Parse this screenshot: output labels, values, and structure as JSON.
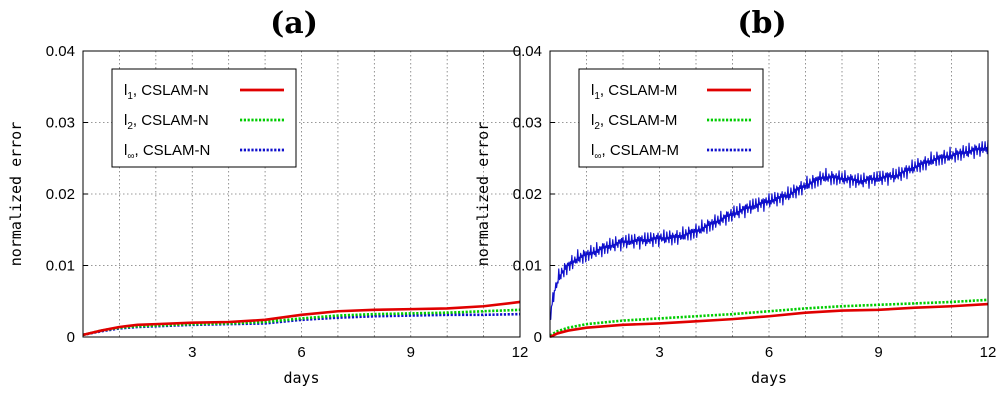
{
  "chart_data": [
    {
      "type": "line",
      "title": "(a)",
      "xlabel": "days",
      "ylabel": "normalized error",
      "xlim": [
        0,
        12
      ],
      "ylim": [
        0,
        0.04
      ],
      "xticks": [
        "3",
        "6",
        "9",
        "12"
      ],
      "yticks": [
        "0",
        "0.01",
        "0.02",
        "0.03",
        "0.04"
      ],
      "grid": true,
      "legend_position": "top-left",
      "series": [
        {
          "name": "l",
          "sub": "1",
          "suffix": ", CSLAM-N",
          "color": "#e00000",
          "dash": "solid",
          "x": [
            0,
            0.5,
            1,
            1.5,
            2,
            3,
            4,
            5,
            6,
            7,
            8,
            9,
            10,
            11,
            12
          ],
          "y": [
            0.0003,
            0.0009,
            0.0014,
            0.0017,
            0.0018,
            0.002,
            0.0021,
            0.0024,
            0.0031,
            0.0036,
            0.0038,
            0.0039,
            0.004,
            0.0043,
            0.0049
          ]
        },
        {
          "name": "l",
          "sub": "2",
          "suffix": ", CSLAM-N",
          "color": "#00cc00",
          "dash": "dotted",
          "x": [
            0,
            0.5,
            1,
            1.5,
            2,
            3,
            4,
            5,
            6,
            7,
            8,
            9,
            10,
            11,
            12
          ],
          "y": [
            0.0003,
            0.0009,
            0.0013,
            0.0015,
            0.0016,
            0.0018,
            0.0019,
            0.0021,
            0.0026,
            0.003,
            0.0032,
            0.0033,
            0.0034,
            0.0036,
            0.0038
          ]
        },
        {
          "name": "l",
          "sub": "∞",
          "suffix": ", CSLAM-N",
          "color": "#1010cc",
          "dash": "dotted",
          "x": [
            0,
            0.5,
            1,
            1.5,
            2,
            3,
            4,
            5,
            6,
            7,
            8,
            9,
            10,
            11,
            12
          ],
          "y": [
            0.0003,
            0.0008,
            0.0012,
            0.0014,
            0.0015,
            0.0017,
            0.0018,
            0.0019,
            0.0024,
            0.0027,
            0.0029,
            0.003,
            0.0031,
            0.0031,
            0.0032
          ]
        }
      ]
    },
    {
      "type": "line",
      "title": "(b)",
      "xlabel": "days",
      "ylabel": "normalized error",
      "xlim": [
        0,
        12
      ],
      "ylim": [
        0,
        0.04
      ],
      "xticks": [
        "3",
        "6",
        "9",
        "12"
      ],
      "yticks": [
        "0",
        "0.01",
        "0.02",
        "0.03",
        "0.04"
      ],
      "grid": true,
      "legend_position": "top-left",
      "series": [
        {
          "name": "l",
          "sub": "1",
          "suffix": ", CSLAM-M",
          "color": "#e00000",
          "dash": "solid",
          "x": [
            0,
            0.2,
            0.5,
            1,
            2,
            3,
            4,
            5,
            6,
            7,
            8,
            9,
            10,
            11,
            12
          ],
          "y": [
            0,
            0.0005,
            0.0009,
            0.0013,
            0.0017,
            0.0019,
            0.0022,
            0.0025,
            0.0029,
            0.0034,
            0.0037,
            0.0038,
            0.0041,
            0.0043,
            0.0046
          ]
        },
        {
          "name": "l",
          "sub": "2",
          "suffix": ", CSLAM-M",
          "color": "#00cc00",
          "dash": "dotted",
          "x": [
            0,
            0.2,
            0.5,
            1,
            2,
            3,
            4,
            5,
            6,
            7,
            8,
            9,
            10,
            11,
            12
          ],
          "y": [
            0.0002,
            0.0008,
            0.0013,
            0.0018,
            0.0023,
            0.0026,
            0.0029,
            0.0032,
            0.0036,
            0.004,
            0.0043,
            0.0045,
            0.0047,
            0.0049,
            0.0052
          ]
        },
        {
          "name": "l",
          "sub": "∞",
          "suffix": ", CSLAM-M",
          "color": "#1010cc",
          "dash": "dotted",
          "x": [
            0,
            0.1,
            0.25,
            0.5,
            0.75,
            1,
            1.5,
            2,
            2.5,
            3,
            3.5,
            4,
            4.5,
            5,
            5.5,
            6,
            6.5,
            7,
            7.5,
            8,
            8.5,
            9,
            9.5,
            10,
            10.5,
            11,
            11.5,
            12
          ],
          "y": [
            0.0025,
            0.006,
            0.0085,
            0.01,
            0.011,
            0.0115,
            0.0125,
            0.0133,
            0.0135,
            0.0138,
            0.014,
            0.0148,
            0.016,
            0.0172,
            0.0182,
            0.019,
            0.0198,
            0.0212,
            0.0224,
            0.0222,
            0.0218,
            0.0222,
            0.0226,
            0.0238,
            0.0248,
            0.0254,
            0.026,
            0.0265
          ],
          "noise": 0.0012
        }
      ]
    }
  ]
}
